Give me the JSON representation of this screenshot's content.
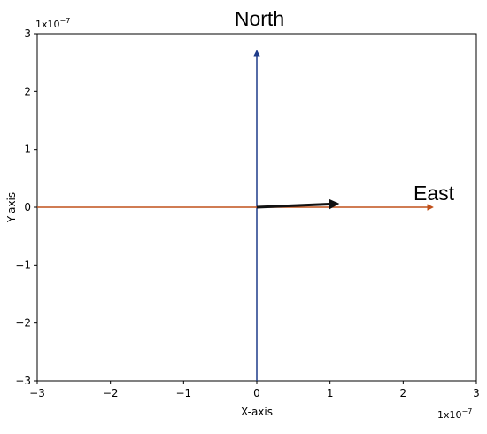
{
  "chart_data": {
    "type": "line",
    "xlabel": "X-axis",
    "ylabel": "Y-axis",
    "xlim": [
      -3e-07,
      3e-07
    ],
    "ylim": [
      -3e-07,
      3e-07
    ],
    "x_ticks": [
      -3,
      -2,
      -1,
      0,
      1,
      2,
      3
    ],
    "y_ticks": [
      -3,
      -2,
      -1,
      0,
      1,
      2,
      3
    ],
    "x_tick_labels": [
      "−3",
      "−2",
      "−1",
      "0",
      "1",
      "2",
      "3"
    ],
    "y_tick_labels": [
      "−3",
      "−2",
      "−1",
      "0",
      "1",
      "2",
      "3"
    ],
    "x_multiplier": "1x10",
    "x_multiplier_exp": "−7",
    "y_multiplier": "1x10",
    "y_multiplier_exp": "−7",
    "grid": false,
    "annotations": [
      {
        "text": "North",
        "x": 0,
        "y": 3.2e-07
      },
      {
        "text": "East",
        "x": 2.75e-07,
        "y": 2e-08
      }
    ],
    "vectors": [
      {
        "name": "",
        "from": [
          0,
          -3e-07
        ],
        "to": [
          0,
          2.7e-07
        ],
        "color": "#1f3c8a"
      },
      {
        "name": "",
        "from": [
          -3e-07,
          0
        ],
        "to": [
          2.4e-07,
          0
        ],
        "color": "#c0501a"
      },
      {
        "name": "",
        "from": [
          0,
          0
        ],
        "to": [
          1.1e-07,
          6e-09
        ],
        "color": "#111111"
      }
    ]
  }
}
